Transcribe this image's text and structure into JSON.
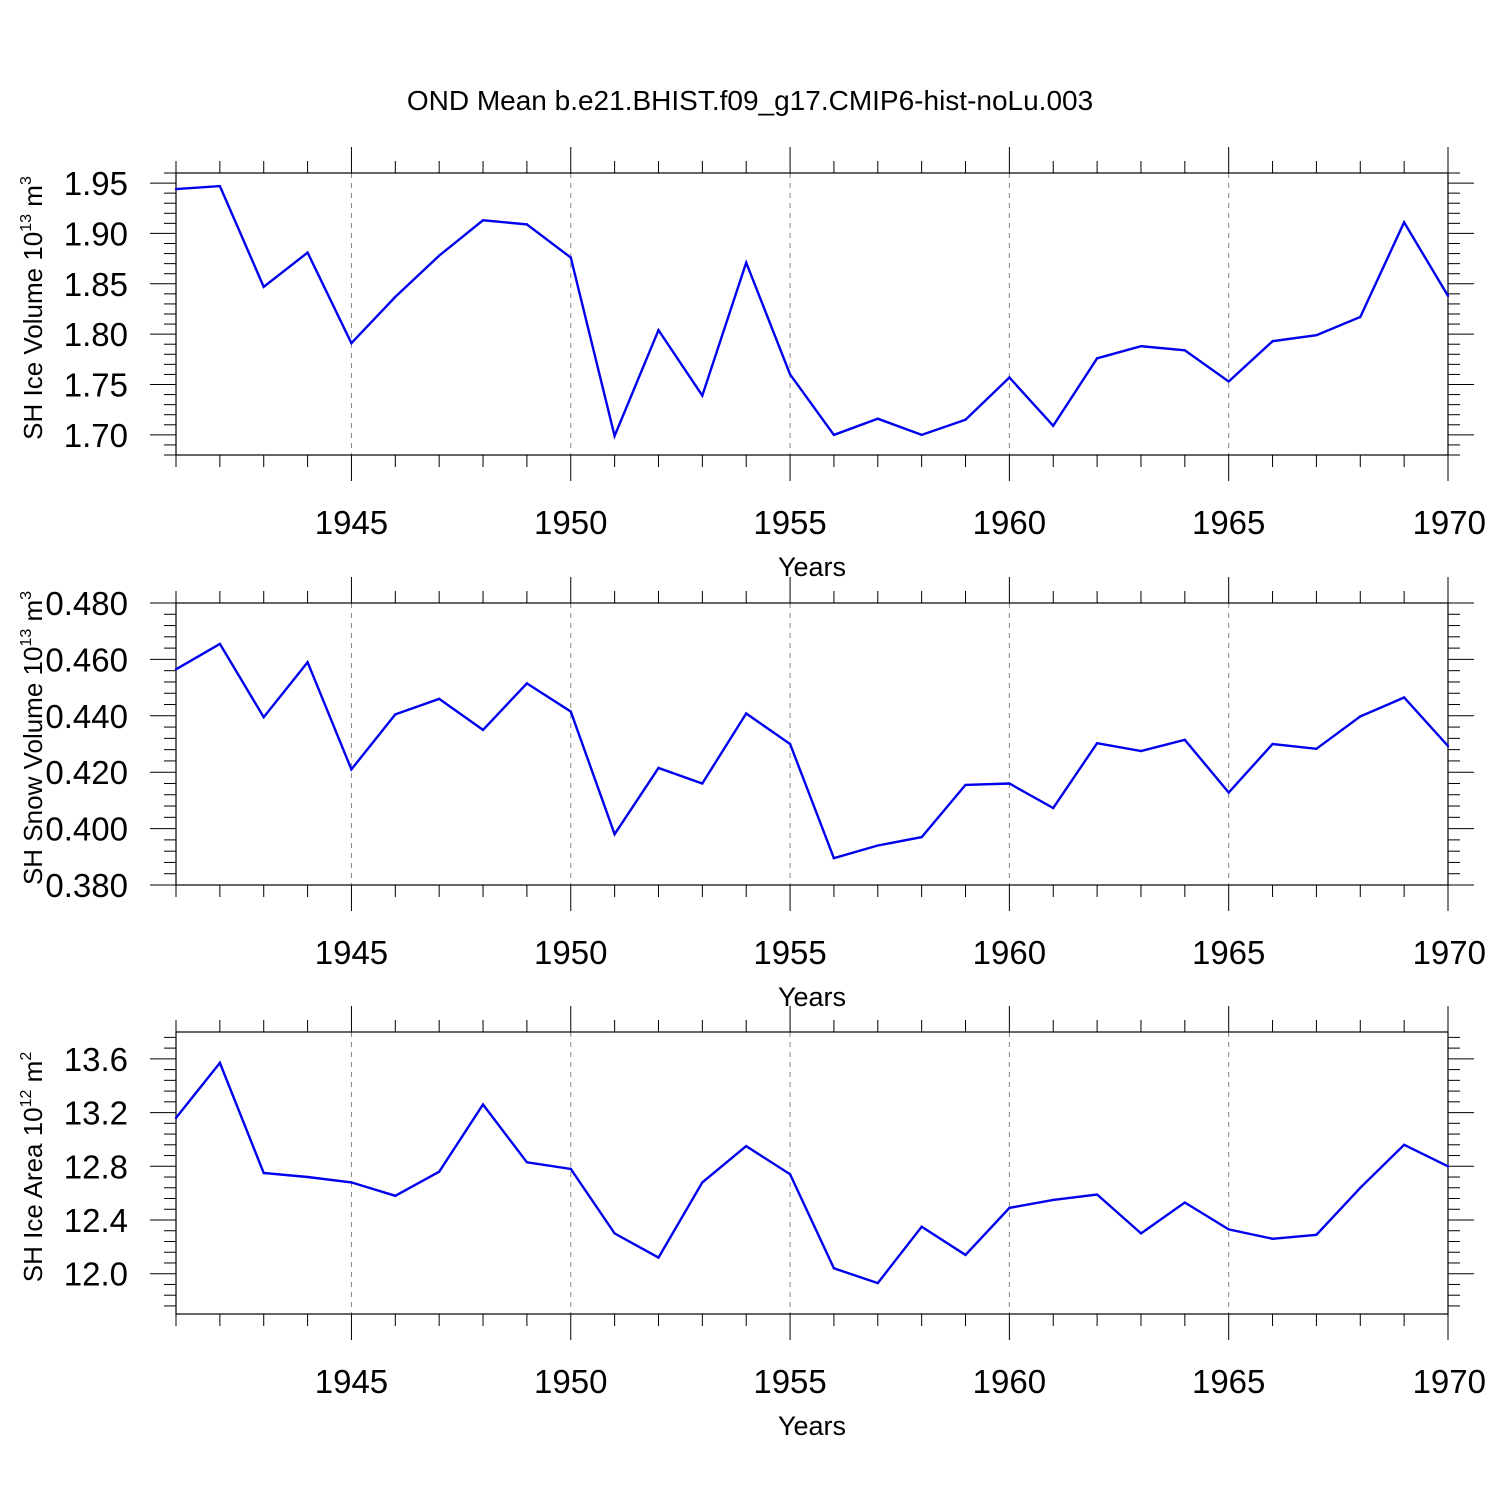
{
  "title": "OND Mean b.e21.BHIST.f09_g17.CMIP6-hist-noLu.003",
  "colors": {
    "line": "#0000ee",
    "axis": "#000000",
    "grid": "#888888"
  },
  "chart_data": [
    {
      "type": "line",
      "ylabel": {
        "text": "SH Ice Volume 10",
        "sup1": "13",
        "unit": " m",
        "sup2": "3"
      },
      "xlabel": "Years",
      "xlim": [
        1941,
        1970
      ],
      "ylim": [
        1.68,
        1.96
      ],
      "yticks": [
        1.7,
        1.75,
        1.8,
        1.85,
        1.9,
        1.95
      ],
      "ytick_labels": [
        "1.70",
        "1.75",
        "1.80",
        "1.85",
        "1.90",
        "1.95"
      ],
      "xticks": [
        1945,
        1950,
        1955,
        1960,
        1965,
        1970
      ],
      "xtick_labels": [
        "1945",
        "1950",
        "1955",
        "1960",
        "1965",
        "1970"
      ],
      "grid": "vertical dashed at labeled x ticks",
      "x": [
        1941,
        1942,
        1943,
        1944,
        1945,
        1946,
        1947,
        1948,
        1949,
        1950,
        1951,
        1952,
        1953,
        1954,
        1955,
        1956,
        1957,
        1958,
        1959,
        1960,
        1961,
        1962,
        1963,
        1964,
        1965,
        1966,
        1967,
        1968,
        1969,
        1970
      ],
      "values": [
        1.944,
        1.947,
        1.847,
        1.881,
        1.791,
        1.837,
        1.878,
        1.913,
        1.909,
        1.876,
        1.699,
        1.804,
        1.739,
        1.871,
        1.76,
        1.7,
        1.716,
        1.7,
        1.715,
        1.757,
        1.709,
        1.776,
        1.788,
        1.784,
        1.753,
        1.793,
        1.799,
        1.817,
        1.911,
        1.838
      ]
    },
    {
      "type": "line",
      "ylabel": {
        "text": "SH Snow Volume 10",
        "sup1": "13",
        "unit": " m",
        "sup2": "3"
      },
      "xlabel": "Years",
      "xlim": [
        1941,
        1970
      ],
      "ylim": [
        0.38,
        0.48
      ],
      "yticks": [
        0.38,
        0.4,
        0.42,
        0.44,
        0.46,
        0.48
      ],
      "ytick_labels": [
        "0.380",
        "0.400",
        "0.420",
        "0.440",
        "0.460",
        "0.480"
      ],
      "xticks": [
        1945,
        1950,
        1955,
        1960,
        1965,
        1970
      ],
      "xtick_labels": [
        "1945",
        "1950",
        "1955",
        "1960",
        "1965",
        "1970"
      ],
      "grid": "vertical dashed at labeled x ticks",
      "x": [
        1941,
        1942,
        1943,
        1944,
        1945,
        1946,
        1947,
        1948,
        1949,
        1950,
        1951,
        1952,
        1953,
        1954,
        1955,
        1956,
        1957,
        1958,
        1959,
        1960,
        1961,
        1962,
        1963,
        1964,
        1965,
        1966,
        1967,
        1968,
        1969,
        1970
      ],
      "values": [
        0.4565,
        0.4655,
        0.4395,
        0.459,
        0.421,
        0.4405,
        0.446,
        0.435,
        0.4515,
        0.4415,
        0.398,
        0.4215,
        0.416,
        0.4408,
        0.43,
        0.3895,
        0.394,
        0.397,
        0.4155,
        0.416,
        0.4073,
        0.4303,
        0.4275,
        0.4315,
        0.4128,
        0.43,
        0.4283,
        0.4398,
        0.4465,
        0.4293
      ]
    },
    {
      "type": "line",
      "ylabel": {
        "text": "SH Ice Area 10",
        "sup1": "12",
        "unit": " m",
        "sup2": "2"
      },
      "xlabel": "Years",
      "xlim": [
        1941,
        1970
      ],
      "ylim": [
        11.7,
        13.8
      ],
      "yticks": [
        12.0,
        12.4,
        12.8,
        13.2,
        13.6
      ],
      "ytick_labels": [
        "12.0",
        "12.4",
        "12.8",
        "13.2",
        "13.6"
      ],
      "xticks": [
        1945,
        1950,
        1955,
        1960,
        1965,
        1970
      ],
      "xtick_labels": [
        "1945",
        "1950",
        "1955",
        "1960",
        "1965",
        "1970"
      ],
      "grid": "vertical dashed at labeled x ticks",
      "x": [
        1941,
        1942,
        1943,
        1944,
        1945,
        1946,
        1947,
        1948,
        1949,
        1950,
        1951,
        1952,
        1953,
        1954,
        1955,
        1956,
        1957,
        1958,
        1959,
        1960,
        1961,
        1962,
        1963,
        1964,
        1965,
        1966,
        1967,
        1968,
        1969,
        1970
      ],
      "values": [
        13.16,
        13.57,
        12.75,
        12.72,
        12.68,
        12.58,
        12.76,
        13.26,
        12.83,
        12.78,
        12.3,
        12.12,
        12.68,
        12.95,
        12.74,
        12.04,
        11.93,
        12.35,
        12.14,
        12.49,
        12.55,
        12.59,
        12.3,
        12.53,
        12.33,
        12.26,
        12.29,
        12.64,
        12.96,
        12.8
      ]
    }
  ]
}
